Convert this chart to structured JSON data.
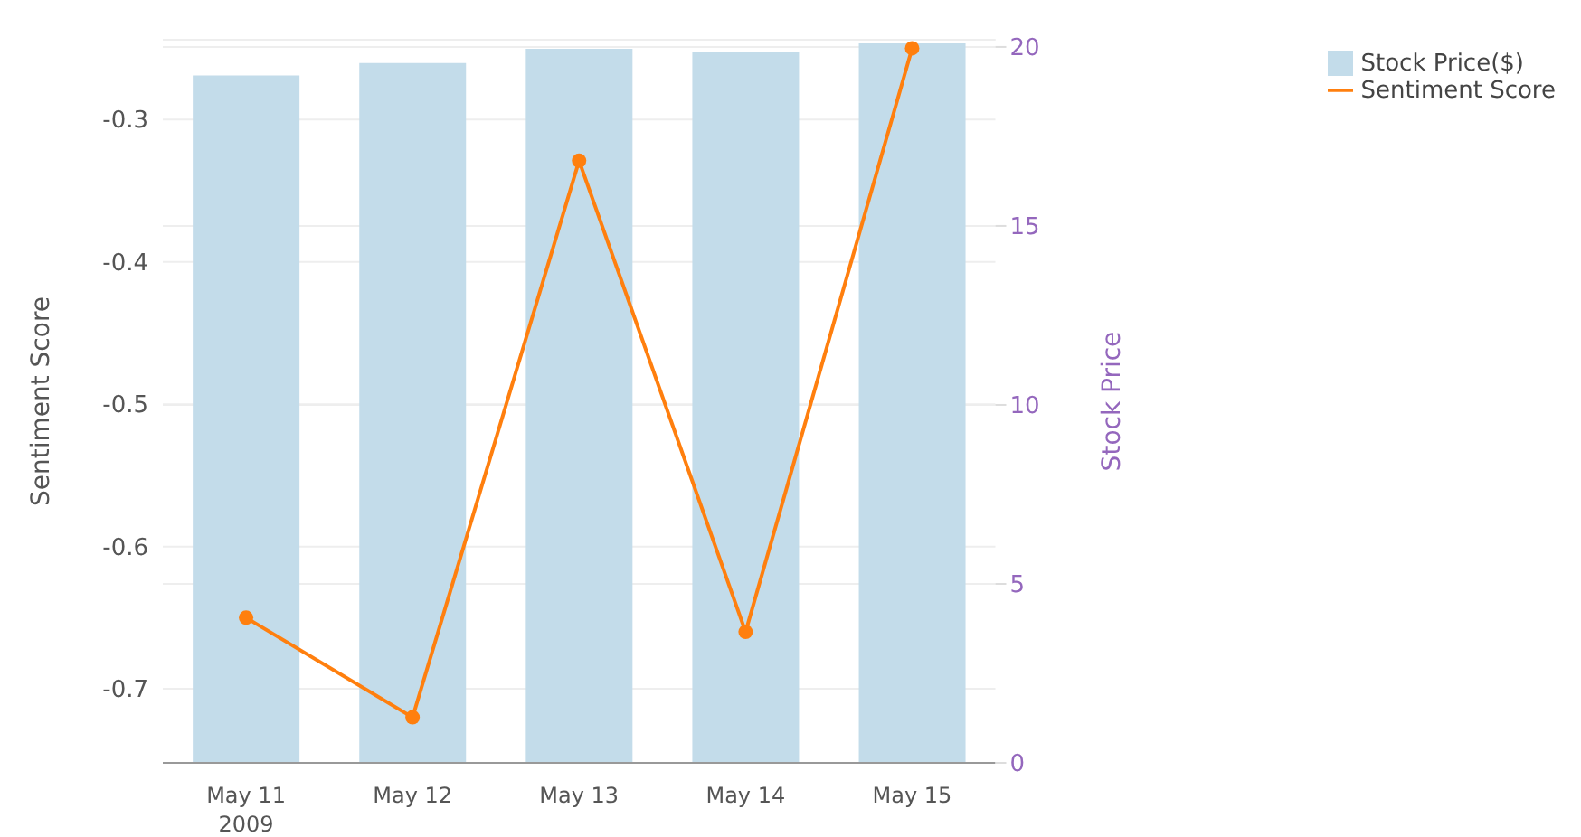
{
  "chart_data": {
    "type": "bar",
    "categories": [
      "May 11\n2009",
      "May 12",
      "May 13",
      "May 14",
      "May 15"
    ],
    "series": [
      {
        "name": "Stock Price($)",
        "axis": "y2",
        "color": "#c3dcea",
        "values": [
          19.2,
          19.55,
          19.95,
          19.85,
          20.1
        ]
      },
      {
        "name": "Sentiment Score",
        "type": "line",
        "color": "#ff7f0e",
        "marker": "circle",
        "values": [
          -0.65,
          -0.72,
          -0.329,
          -0.66,
          -0.25
        ]
      }
    ],
    "ylabel": "Sentiment Score",
    "y2label": "Stock Price",
    "ylim": [
      -0.752,
      -0.244
    ],
    "yticks": [
      -0.7,
      -0.6,
      -0.5,
      -0.4,
      -0.3
    ],
    "y2lim": [
      0,
      20.2
    ],
    "y2ticks": [
      0,
      5,
      10,
      15,
      20
    ],
    "grid": true,
    "legend": "top right"
  }
}
